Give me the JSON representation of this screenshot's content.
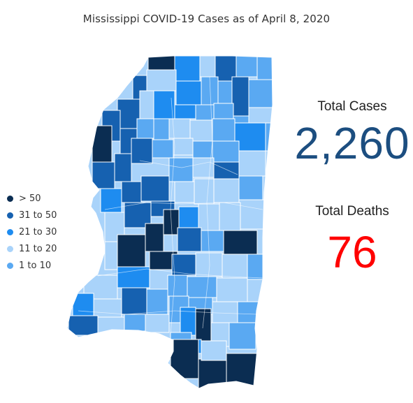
{
  "title": "Mississippi COVID-19 Cases as of April 8, 2020",
  "legend": [
    {
      "label": "> 50",
      "color": "#0b2d52"
    },
    {
      "label": "31 to 50",
      "color": "#1661b0"
    },
    {
      "label": "21 to 30",
      "color": "#1e8cf0"
    },
    {
      "label": "11 to 20",
      "color": "#a9d3fa"
    },
    {
      "label": "1 to 10",
      "color": "#5aa9f2"
    }
  ],
  "kpis": {
    "total_cases_label": "Total Cases",
    "total_cases_value": "2,260",
    "total_deaths_label": "Total Deaths",
    "total_deaths_value": "76",
    "cases_color": "#1c4e80",
    "deaths_color": "#ff0000"
  }
}
